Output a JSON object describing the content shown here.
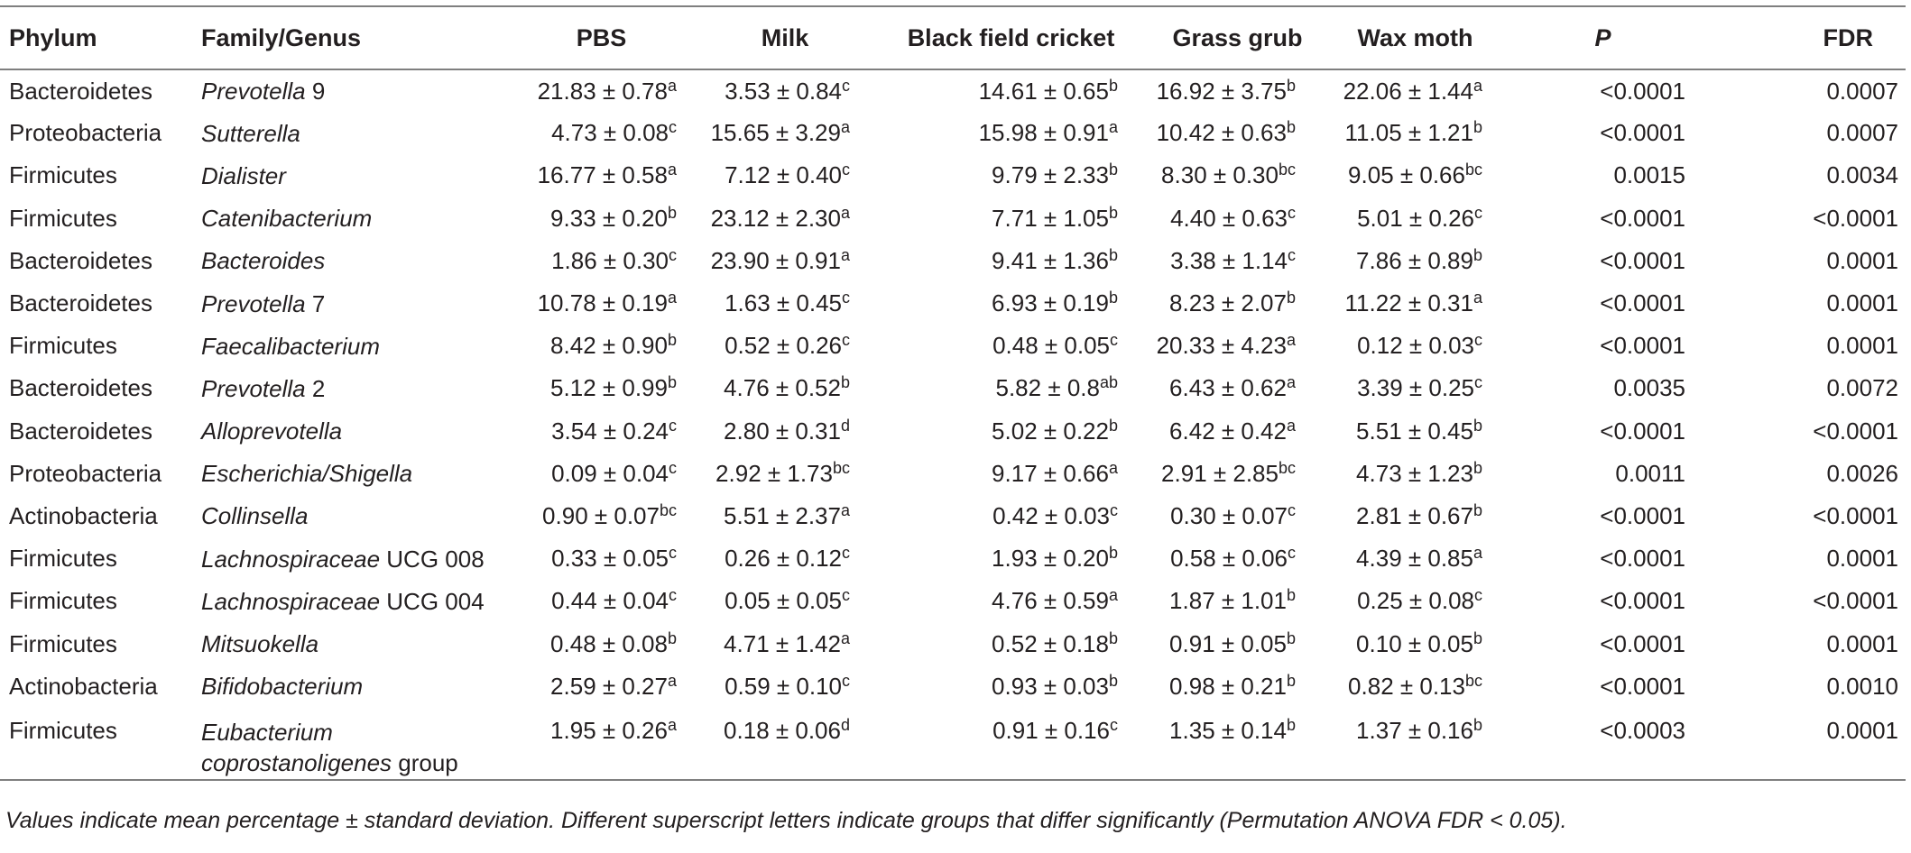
{
  "table": {
    "headers": [
      {
        "key": "phylum",
        "label": "Phylum"
      },
      {
        "key": "genus",
        "label": "Family/Genus"
      },
      {
        "key": "pbs",
        "label": "PBS"
      },
      {
        "key": "milk",
        "label": "Milk"
      },
      {
        "key": "bfc",
        "label": "Black field cricket"
      },
      {
        "key": "gg",
        "label": "Grass grub"
      },
      {
        "key": "wm",
        "label": "Wax moth"
      },
      {
        "key": "p",
        "label": "P"
      },
      {
        "key": "fdr",
        "label": "FDR"
      }
    ],
    "rows": [
      {
        "phylum": "Bacteroidetes",
        "genus_italic": "Prevotella",
        "genus_plain": " 9",
        "pbs": {
          "v": "21.83 ± 0.78",
          "s": "a"
        },
        "milk": {
          "v": "3.53 ± 0.84",
          "s": "c"
        },
        "bfc": {
          "v": "14.61 ± 0.65",
          "s": "b"
        },
        "gg": {
          "v": "16.92 ± 3.75",
          "s": "b"
        },
        "wm": {
          "v": "22.06 ± 1.44",
          "s": "a"
        },
        "p": "<0.0001",
        "fdr": "0.0007"
      },
      {
        "phylum": "Proteobacteria",
        "genus_italic": "Sutterella",
        "genus_plain": "",
        "pbs": {
          "v": "4.73 ± 0.08",
          "s": "c"
        },
        "milk": {
          "v": "15.65 ± 3.29",
          "s": "a"
        },
        "bfc": {
          "v": "15.98 ± 0.91",
          "s": "a"
        },
        "gg": {
          "v": "10.42 ± 0.63",
          "s": "b"
        },
        "wm": {
          "v": "11.05 ± 1.21",
          "s": "b"
        },
        "p": "<0.0001",
        "fdr": "0.0007"
      },
      {
        "phylum": "Firmicutes",
        "genus_italic": "Dialister",
        "genus_plain": "",
        "pbs": {
          "v": "16.77 ± 0.58",
          "s": "a"
        },
        "milk": {
          "v": "7.12 ± 0.40",
          "s": "c"
        },
        "bfc": {
          "v": "9.79 ± 2.33",
          "s": "b"
        },
        "gg": {
          "v": "8.30 ± 0.30",
          "s": "bc"
        },
        "wm": {
          "v": "9.05 ± 0.66",
          "s": "bc"
        },
        "p": "0.0015",
        "fdr": "0.0034"
      },
      {
        "phylum": "Firmicutes",
        "genus_italic": "Catenibacterium",
        "genus_plain": "",
        "pbs": {
          "v": "9.33 ± 0.20",
          "s": "b"
        },
        "milk": {
          "v": "23.12 ± 2.30",
          "s": "a"
        },
        "bfc": {
          "v": "7.71 ± 1.05",
          "s": "b"
        },
        "gg": {
          "v": "4.40 ± 0.63",
          "s": "c"
        },
        "wm": {
          "v": "5.01 ± 0.26",
          "s": "c"
        },
        "p": "<0.0001",
        "fdr": "<0.0001"
      },
      {
        "phylum": "Bacteroidetes",
        "genus_italic": "Bacteroides",
        "genus_plain": "",
        "pbs": {
          "v": "1.86 ± 0.30",
          "s": "c"
        },
        "milk": {
          "v": "23.90 ± 0.91",
          "s": "a"
        },
        "bfc": {
          "v": "9.41 ± 1.36",
          "s": "b"
        },
        "gg": {
          "v": "3.38 ± 1.14",
          "s": "c"
        },
        "wm": {
          "v": "7.86 ± 0.89",
          "s": "b"
        },
        "p": "<0.0001",
        "fdr": "0.0001"
      },
      {
        "phylum": "Bacteroidetes",
        "genus_italic": "Prevotella",
        "genus_plain": " 7",
        "pbs": {
          "v": "10.78 ± 0.19",
          "s": "a"
        },
        "milk": {
          "v": "1.63 ± 0.45",
          "s": "c"
        },
        "bfc": {
          "v": "6.93 ± 0.19",
          "s": "b"
        },
        "gg": {
          "v": "8.23 ± 2.07",
          "s": "b"
        },
        "wm": {
          "v": "11.22 ± 0.31",
          "s": "a"
        },
        "p": "<0.0001",
        "fdr": "0.0001"
      },
      {
        "phylum": "Firmicutes",
        "genus_italic": "Faecalibacterium",
        "genus_plain": "",
        "pbs": {
          "v": "8.42 ± 0.90",
          "s": "b"
        },
        "milk": {
          "v": "0.52 ± 0.26",
          "s": "c"
        },
        "bfc": {
          "v": "0.48 ± 0.05",
          "s": "c"
        },
        "gg": {
          "v": "20.33 ± 4.23",
          "s": "a"
        },
        "wm": {
          "v": "0.12 ± 0.03",
          "s": "c"
        },
        "p": "<0.0001",
        "fdr": "0.0001"
      },
      {
        "phylum": "Bacteroidetes",
        "genus_italic": "Prevotella",
        "genus_plain": " 2",
        "pbs": {
          "v": "5.12 ± 0.99",
          "s": "b"
        },
        "milk": {
          "v": "4.76 ± 0.52",
          "s": "b"
        },
        "bfc": {
          "v": "5.82 ± 0.8",
          "s": "ab"
        },
        "gg": {
          "v": "6.43 ± 0.62",
          "s": "a"
        },
        "wm": {
          "v": "3.39 ± 0.25",
          "s": "c"
        },
        "p": "0.0035",
        "fdr": "0.0072"
      },
      {
        "phylum": "Bacteroidetes",
        "genus_italic": "Alloprevotella",
        "genus_plain": "",
        "pbs": {
          "v": "3.54 ± 0.24",
          "s": "c"
        },
        "milk": {
          "v": "2.80 ± 0.31",
          "s": "d"
        },
        "bfc": {
          "v": "5.02 ± 0.22",
          "s": "b"
        },
        "gg": {
          "v": "6.42 ± 0.42",
          "s": "a"
        },
        "wm": {
          "v": "5.51 ± 0.45",
          "s": "b"
        },
        "p": "<0.0001",
        "fdr": "<0.0001"
      },
      {
        "phylum": "Proteobacteria",
        "genus_italic": "Escherichia/Shigella",
        "genus_plain": "",
        "pbs": {
          "v": "0.09 ± 0.04",
          "s": "c"
        },
        "milk": {
          "v": "2.92 ± 1.73",
          "s": "bc"
        },
        "bfc": {
          "v": "9.17 ± 0.66",
          "s": "a"
        },
        "gg": {
          "v": "2.91 ± 2.85",
          "s": "bc"
        },
        "wm": {
          "v": "4.73 ± 1.23",
          "s": "b"
        },
        "p": "0.0011",
        "fdr": "0.0026"
      },
      {
        "phylum": "Actinobacteria",
        "genus_italic": "Collinsella",
        "genus_plain": "",
        "pbs": {
          "v": "0.90 ± 0.07",
          "s": "bc"
        },
        "milk": {
          "v": "5.51 ± 2.37",
          "s": "a"
        },
        "bfc": {
          "v": "0.42 ± 0.03",
          "s": "c"
        },
        "gg": {
          "v": "0.30 ± 0.07",
          "s": "c"
        },
        "wm": {
          "v": "2.81 ± 0.67",
          "s": "b"
        },
        "p": "<0.0001",
        "fdr": "<0.0001"
      },
      {
        "phylum": "Firmicutes",
        "genus_italic": "Lachnospiraceae",
        "genus_plain": " UCG 008",
        "pbs": {
          "v": "0.33 ± 0.05",
          "s": "c"
        },
        "milk": {
          "v": "0.26 ± 0.12",
          "s": "c"
        },
        "bfc": {
          "v": "1.93 ± 0.20",
          "s": "b"
        },
        "gg": {
          "v": "0.58 ± 0.06",
          "s": "c"
        },
        "wm": {
          "v": "4.39 ± 0.85",
          "s": "a"
        },
        "p": "<0.0001",
        "fdr": "0.0001"
      },
      {
        "phylum": "Firmicutes",
        "genus_italic": "Lachnospiraceae",
        "genus_plain": " UCG 004",
        "pbs": {
          "v": "0.44 ± 0.04",
          "s": "c"
        },
        "milk": {
          "v": "0.05 ± 0.05",
          "s": "c"
        },
        "bfc": {
          "v": "4.76 ± 0.59",
          "s": "a"
        },
        "gg": {
          "v": "1.87 ± 1.01",
          "s": "b"
        },
        "wm": {
          "v": "0.25 ± 0.08",
          "s": "c"
        },
        "p": "<0.0001",
        "fdr": "<0.0001"
      },
      {
        "phylum": "Firmicutes",
        "genus_italic": "Mitsuokella",
        "genus_plain": "",
        "pbs": {
          "v": "0.48 ± 0.08",
          "s": "b"
        },
        "milk": {
          "v": "4.71 ± 1.42",
          "s": "a"
        },
        "bfc": {
          "v": "0.52 ± 0.18",
          "s": "b"
        },
        "gg": {
          "v": "0.91 ± 0.05",
          "s": "b"
        },
        "wm": {
          "v": "0.10 ± 0.05",
          "s": "b"
        },
        "p": "<0.0001",
        "fdr": "0.0001"
      },
      {
        "phylum": "Actinobacteria",
        "genus_italic": "Bifidobacterium",
        "genus_plain": "",
        "pbs": {
          "v": "2.59 ± 0.27",
          "s": "a"
        },
        "milk": {
          "v": "0.59 ± 0.10",
          "s": "c"
        },
        "bfc": {
          "v": "0.93 ± 0.03",
          "s": "b"
        },
        "gg": {
          "v": "0.98 ± 0.21",
          "s": "b"
        },
        "wm": {
          "v": "0.82 ± 0.13",
          "s": "bc"
        },
        "p": "<0.0001",
        "fdr": "0.0010"
      },
      {
        "phylum": "Firmicutes",
        "genus_italic": "Eubacterium",
        "genus_plain": "",
        "genus_line2_italic": "coprostanoligenes",
        "genus_line2_plain": " group",
        "pbs": {
          "v": "1.95 ± 0.26",
          "s": "a"
        },
        "milk": {
          "v": "0.18 ± 0.06",
          "s": "d"
        },
        "bfc": {
          "v": "0.91 ± 0.16",
          "s": "c"
        },
        "gg": {
          "v": "1.35 ± 0.14",
          "s": "b"
        },
        "wm": {
          "v": "1.37 ± 0.16",
          "s": "b"
        },
        "p": "<0.0003",
        "fdr": "0.0001"
      }
    ]
  },
  "footnote": "Values indicate mean percentage ± standard deviation. Different superscript letters indicate groups that differ significantly (Permutation ANOVA FDR < 0.05)."
}
